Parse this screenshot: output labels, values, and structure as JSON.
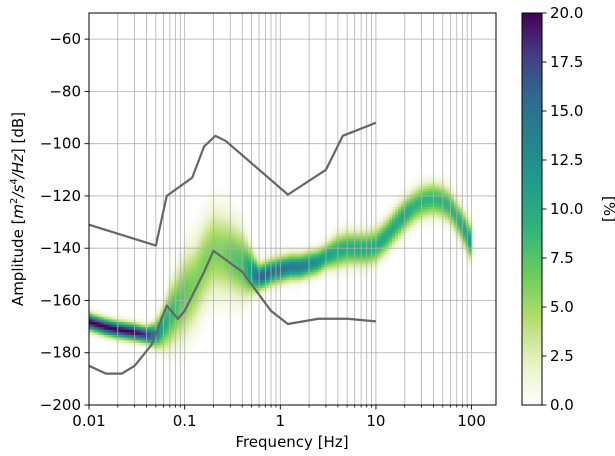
{
  "chart_data": {
    "type": "heatmap",
    "title": "",
    "xlabel": "Frequency [Hz]",
    "ylabel_parts": [
      "Amplitude [",
      "m",
      "2",
      "/",
      "s",
      "4",
      "/",
      "Hz",
      "] [dB]"
    ],
    "xscale": "log",
    "xlim": [
      0.01,
      180
    ],
    "ylim": [
      -200,
      -50
    ],
    "x_ticks": [
      0.01,
      0.1,
      1,
      10,
      100
    ],
    "x_tick_labels": [
      "0.01",
      "0.1",
      "1",
      "10",
      "100"
    ],
    "y_ticks": [
      -60,
      -80,
      -100,
      -120,
      -140,
      -160,
      -180,
      -200
    ],
    "y_tick_labels": [
      "−60",
      "−80",
      "−100",
      "−120",
      "−140",
      "−160",
      "−180",
      "−200"
    ],
    "grid": true,
    "colormap": "viridis_r",
    "colorbar": {
      "label": "[%]",
      "range": [
        0,
        20
      ],
      "ticks": [
        0,
        2.5,
        5,
        7.5,
        10,
        12.5,
        15,
        17.5,
        20
      ],
      "tick_labels": [
        "0.0",
        "2.5",
        "5.0",
        "7.5",
        "10.0",
        "12.5",
        "15.0",
        "17.5",
        "20.0"
      ]
    },
    "density_ridge": {
      "description_free": true,
      "x": [
        0.01,
        0.015,
        0.02,
        0.03,
        0.04,
        0.05,
        0.06,
        0.07,
        0.08,
        0.1,
        0.13,
        0.16,
        0.2,
        0.25,
        0.3,
        0.4,
        0.5,
        0.6,
        0.7,
        0.8,
        1.0,
        1.3,
        1.6,
        2.0,
        2.5,
        3.0,
        4.0,
        5.0,
        6.0,
        8.0,
        10,
        13,
        16,
        20,
        25,
        30,
        40,
        50,
        60,
        70,
        80,
        90,
        100
      ],
      "y": [
        -168,
        -170,
        -171,
        -172,
        -173,
        -173,
        -170,
        -166,
        -163,
        -158,
        -153,
        -146,
        -141,
        -142,
        -143,
        -146,
        -149,
        -151,
        -150,
        -149,
        -148,
        -147,
        -147,
        -146,
        -145,
        -143,
        -141,
        -140,
        -140,
        -140,
        -139,
        -135,
        -131,
        -127,
        -124,
        -122,
        -121,
        -122,
        -124,
        -128,
        -131,
        -135,
        -138
      ],
      "peak_percent": [
        20,
        20,
        20,
        20,
        18,
        14,
        10,
        9,
        8,
        7,
        6,
        6,
        6,
        6,
        7,
        8,
        12,
        16,
        16,
        15,
        15,
        14,
        14,
        13,
        12,
        11,
        10,
        10,
        10,
        10,
        10,
        10,
        10,
        10,
        9,
        9,
        9,
        9,
        9,
        9,
        10,
        11,
        12
      ],
      "spread_db": [
        2,
        2,
        2,
        2,
        2,
        3,
        5,
        7,
        8,
        10,
        10,
        10,
        10,
        10,
        9,
        8,
        5,
        3,
        3,
        3,
        3,
        3,
        3,
        3,
        3,
        3,
        4,
        4,
        4,
        4,
        4,
        4,
        4,
        4,
        4,
        4,
        4,
        4,
        4,
        4,
        4,
        4,
        4
      ]
    },
    "series": [
      {
        "color": "#666666",
        "x": [
          0.01,
          0.05,
          0.065,
          0.12,
          0.16,
          0.21,
          0.27,
          1.2,
          3.0,
          4.5,
          10
        ],
        "y": [
          -131,
          -139,
          -120,
          -113,
          -101,
          -97,
          -99,
          -119.5,
          -110,
          -97,
          -92
        ]
      },
      {
        "color": "#666666",
        "x": [
          0.01,
          0.015,
          0.022,
          0.03,
          0.045,
          0.065,
          0.085,
          0.1,
          0.16,
          0.2,
          0.4,
          0.8,
          1.2,
          2.5,
          5.0,
          10
        ],
        "y": [
          -185,
          -188,
          -188,
          -185,
          -177,
          -162,
          -167,
          -164,
          -149,
          -141,
          -149,
          -164,
          -169,
          -167,
          -167,
          -168
        ]
      }
    ]
  }
}
